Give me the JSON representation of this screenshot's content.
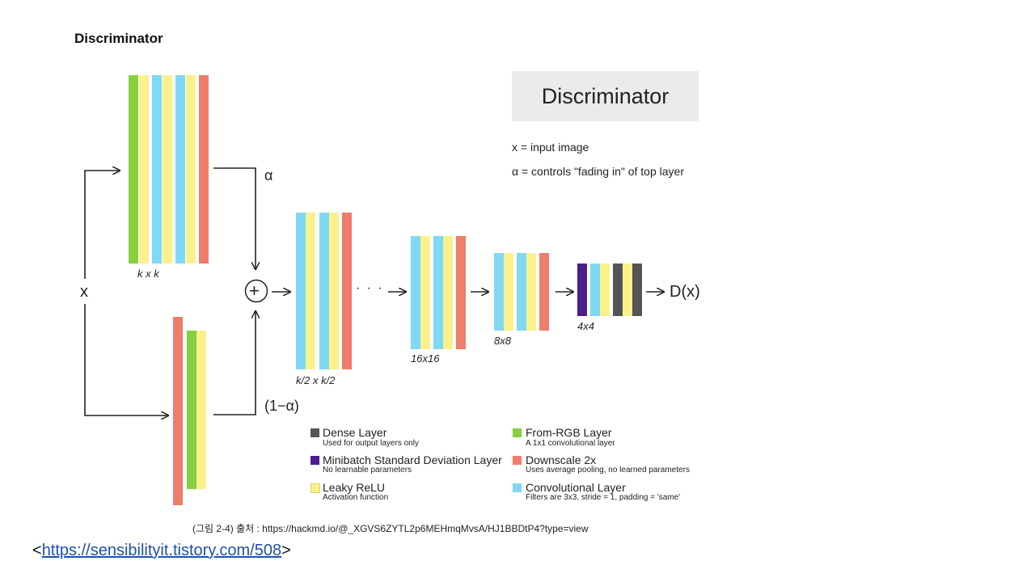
{
  "slide_title": "Discriminator",
  "panel": {
    "title": "Discriminator",
    "notes": [
      "x = input image",
      "α = controls \"fading in\" of top layer"
    ]
  },
  "diagram": {
    "input_label": "x",
    "alpha_label": "α",
    "one_minus_alpha_label": "(1−α)",
    "plus_symbol": "+",
    "dots": "· · ·",
    "output_label": "D(x)",
    "size_labels": [
      "k x k",
      "k/2 x k/2",
      "16x16",
      "8x8",
      "4x4"
    ]
  },
  "legend": [
    {
      "title": "Dense Layer",
      "desc": "Used for output layers only",
      "color": "#555555"
    },
    {
      "title": "Minibatch Standard Deviation Layer",
      "desc": "No learnable parameters",
      "color": "#4b1e8f"
    },
    {
      "title": "Leaky ReLU",
      "desc": "Activation function",
      "color": "#faf18d"
    },
    {
      "title": "From-RGB Layer",
      "desc": "A 1x1 convolutional layer",
      "color": "#86cf3f"
    },
    {
      "title": "Downscale 2x",
      "desc": "Uses average pooling, no learned parameters",
      "color": "#ef7d6b"
    },
    {
      "title": "Convolutional Layer",
      "desc": "Filters are 3x3, stride = 1, padding = 'same'",
      "color": "#7fd8f4"
    }
  ],
  "caption": "(그림 2-4) 출처 : https://hackmd.io/@_XGVS6ZYTL2p6MEHmqMvsA/HJ1BBDtP4?type=view",
  "link": {
    "prefix": "<",
    "text": "https://sensibilityit.tistory.com/508",
    "suffix": ">"
  },
  "colors": {
    "green": "#86cf3f",
    "yellow": "#faf18d",
    "blue": "#7fd8f4",
    "red": "#ef7d6b",
    "purple": "#4b1e8f",
    "gray": "#555555"
  }
}
